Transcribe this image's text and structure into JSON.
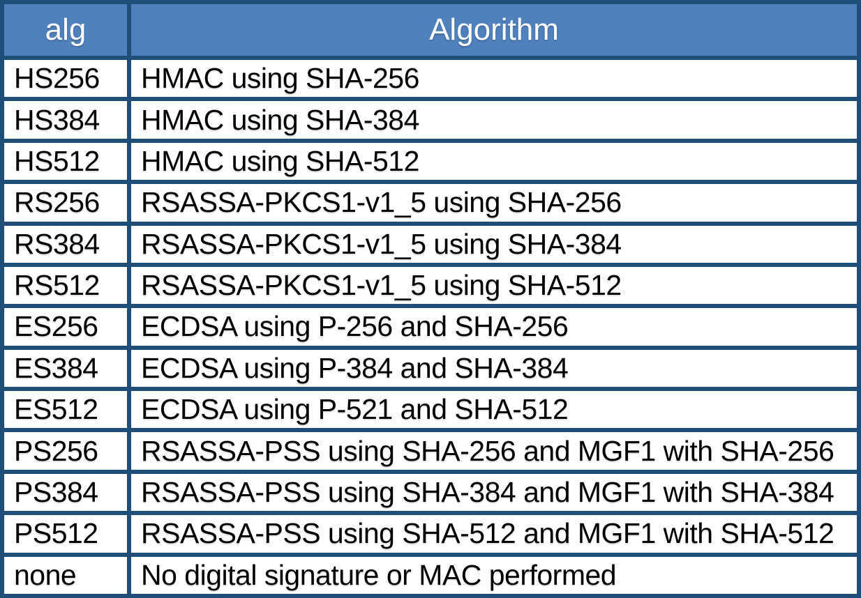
{
  "colors": {
    "header_bg": "#4F81BD",
    "header_text": "#FFFFFF",
    "border": "#1F4E79",
    "body_bg": "#FFFFFF",
    "body_text": "#000000"
  },
  "table": {
    "columns": [
      {
        "key": "alg",
        "label": "alg"
      },
      {
        "key": "algorithm",
        "label": "Algorithm"
      }
    ],
    "rows": [
      {
        "alg": "HS256",
        "algorithm": "HMAC using SHA-256"
      },
      {
        "alg": "HS384",
        "algorithm": "HMAC using SHA-384"
      },
      {
        "alg": "HS512",
        "algorithm": "HMAC using SHA-512"
      },
      {
        "alg": "RS256",
        "algorithm": "RSASSA-PKCS1-v1_5 using SHA-256"
      },
      {
        "alg": "RS384",
        "algorithm": "RSASSA-PKCS1-v1_5 using SHA-384"
      },
      {
        "alg": "RS512",
        "algorithm": "RSASSA-PKCS1-v1_5 using SHA-512"
      },
      {
        "alg": "ES256",
        "algorithm": "ECDSA using P-256 and SHA-256"
      },
      {
        "alg": "ES384",
        "algorithm": "ECDSA using P-384 and SHA-384"
      },
      {
        "alg": "ES512",
        "algorithm": "ECDSA using P-521 and SHA-512"
      },
      {
        "alg": "PS256",
        "algorithm": "RSASSA-PSS using SHA-256 and MGF1 with SHA-256"
      },
      {
        "alg": "PS384",
        "algorithm": "RSASSA-PSS using SHA-384 and MGF1 with SHA-384"
      },
      {
        "alg": "PS512",
        "algorithm": "RSASSA-PSS using SHA-512 and MGF1 with SHA-512"
      },
      {
        "alg": "none",
        "algorithm": "No digital signature or MAC performed"
      }
    ]
  }
}
